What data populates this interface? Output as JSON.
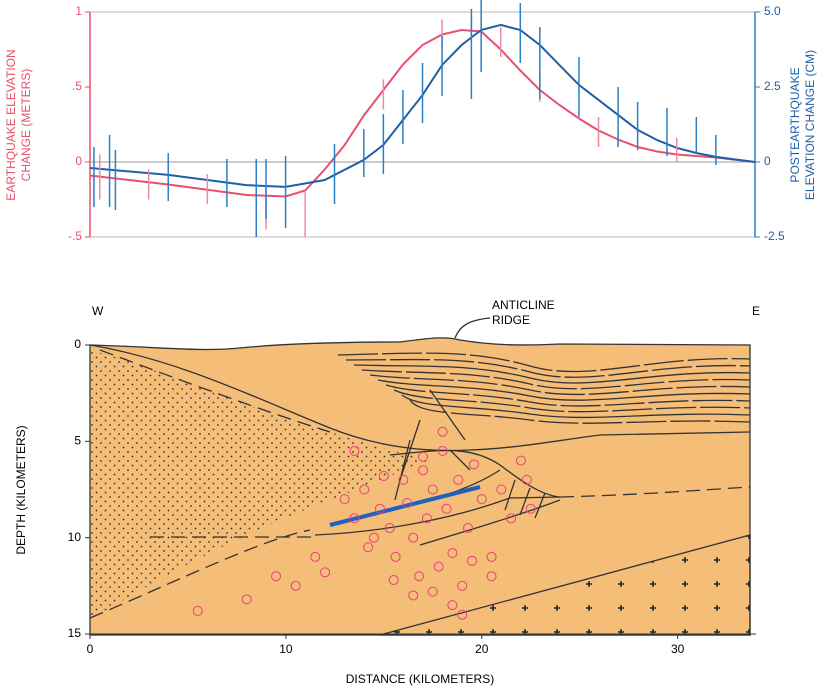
{
  "chart_data": [
    {
      "type": "line",
      "ylabel": [
        "EARTHQUAKE ELEVATION",
        "CHANGE (METERS)"
      ],
      "y2label": [
        "POSTEARTHQUAKE",
        "ELEVATION CHANGE (CM)"
      ],
      "xlim": [
        0,
        34
      ],
      "ylim": [
        -0.5,
        1
      ],
      "yticks": [
        {
          "value": -0.5,
          "label": "-.5"
        },
        0,
        {
          "value": 0.5,
          "label": ".5"
        },
        1
      ],
      "y2lim": [
        -2.5,
        5
      ],
      "y2ticks": [
        -2.5,
        0,
        2.5,
        {
          "value": 5,
          "label": "5.0"
        }
      ],
      "series": [
        {
          "style": "line",
          "color": "#e8506e",
          "x": [
            0,
            4,
            8,
            10,
            11,
            12,
            13,
            14,
            15,
            16,
            17,
            18,
            19,
            20,
            21,
            22,
            23,
            24,
            25,
            26,
            27,
            28,
            29,
            30,
            32,
            34
          ],
          "values": [
            -0.09,
            -0.15,
            -0.22,
            -0.23,
            -0.19,
            -0.05,
            0.11,
            0.31,
            0.48,
            0.65,
            0.78,
            0.85,
            0.88,
            0.87,
            0.75,
            0.61,
            0.48,
            0.38,
            0.29,
            0.21,
            0.15,
            0.1,
            0.07,
            0.05,
            0.03,
            0
          ]
        },
        {
          "style": "line",
          "color": "#1f5fa8",
          "axis": "y2",
          "x": [
            0,
            4,
            8,
            10,
            12,
            14,
            15,
            16,
            17,
            18,
            19,
            20,
            21,
            22,
            23,
            24,
            25,
            26,
            27,
            28,
            29,
            30,
            31,
            32,
            34
          ],
          "values": [
            -0.2,
            -0.43,
            -0.77,
            -0.83,
            -0.6,
            0.07,
            0.57,
            1.4,
            2.23,
            3.23,
            3.9,
            4.4,
            4.57,
            4.4,
            3.9,
            3.23,
            2.57,
            2.07,
            1.57,
            1.07,
            0.73,
            0.47,
            0.3,
            0.17,
            0
          ]
        },
        {
          "style": "errorbar",
          "color": "#f08aa0",
          "x": [
            0.5,
            3,
            6,
            9,
            11,
            15,
            18,
            19.5,
            21,
            23,
            26,
            30
          ],
          "values": [
            -0.1,
            -0.15,
            -0.18,
            -0.3,
            -0.35,
            0.45,
            0.85,
            0.9,
            0.8,
            0.5,
            0.2,
            0.08
          ],
          "errors": [
            0.15,
            0.1,
            0.1,
            0.15,
            0.15,
            0.1,
            0.1,
            0.08,
            0.1,
            0.1,
            0.1,
            0.08
          ]
        },
        {
          "style": "errorbar",
          "color": "#2d7fc4",
          "axis": "y2",
          "x": [
            0.2,
            1,
            1.3,
            4,
            7,
            8.5,
            9,
            10,
            12.5,
            14,
            15,
            16,
            17,
            18,
            19.5,
            20,
            22,
            23,
            25,
            27,
            28,
            29.5,
            31,
            32
          ],
          "values": [
            -0.5,
            -0.3,
            -0.6,
            -0.5,
            -0.7,
            -1.2,
            -0.9,
            -1.0,
            -0.4,
            0.3,
            0.6,
            1.5,
            2.3,
            3.2,
            3.6,
            4.2,
            4.3,
            3.3,
            2.5,
            1.5,
            1.2,
            1.0,
            0.9,
            0.4
          ],
          "errors": [
            1.0,
            1.2,
            1.0,
            0.8,
            0.8,
            1.3,
            1.0,
            1.2,
            1.0,
            0.8,
            1.0,
            0.9,
            1.0,
            1.0,
            1.5,
            1.2,
            1.0,
            1.2,
            1.0,
            1.0,
            0.8,
            0.8,
            0.6,
            0.5
          ]
        }
      ]
    },
    {
      "type": "cross-section",
      "west": "W",
      "east": "E",
      "annotation": [
        "ANTICLINE",
        "RIDGE"
      ],
      "xlabel": "DISTANCE (KILOMETERS)",
      "ylabel": "DEPTH (KILOMETERS)",
      "xlim": [
        0,
        34
      ],
      "xticks": [
        0,
        10,
        20,
        30
      ],
      "ylim": [
        15,
        0
      ],
      "yticks": [
        0,
        5,
        10,
        15
      ],
      "series": [
        {
          "color": "#e8407a",
          "x": [
            13,
            13.5,
            14,
            14.2,
            14.8,
            15,
            15.3,
            15.6,
            16,
            16.2,
            16.5,
            16.8,
            17,
            17.2,
            17.5,
            17.8,
            18,
            18.2,
            18.5,
            18.8,
            19,
            19.3,
            19.6,
            20,
            20.5,
            21,
            21.5,
            22,
            22.3,
            15.5,
            16.5,
            17.5,
            18.5,
            19.5,
            18,
            17,
            14.5,
            12,
            10.5,
            9.5,
            8,
            5.5,
            11.5,
            13.5,
            19,
            20.5,
            22.5
          ],
          "values": [
            8,
            9,
            7.5,
            10.5,
            8.5,
            6.8,
            9.5,
            11,
            7,
            8.2,
            10,
            12,
            6.5,
            9,
            7.5,
            11.5,
            5.5,
            8.5,
            10.8,
            7,
            12.5,
            9.5,
            6.2,
            8,
            11,
            7.5,
            9,
            6,
            7,
            12.2,
            13,
            12.8,
            13.5,
            11.2,
            4.5,
            5.8,
            10,
            11.8,
            12.5,
            12,
            13.2,
            13.8,
            11,
            5.5,
            14,
            12,
            8.5
          ]
        }
      ]
    }
  ]
}
